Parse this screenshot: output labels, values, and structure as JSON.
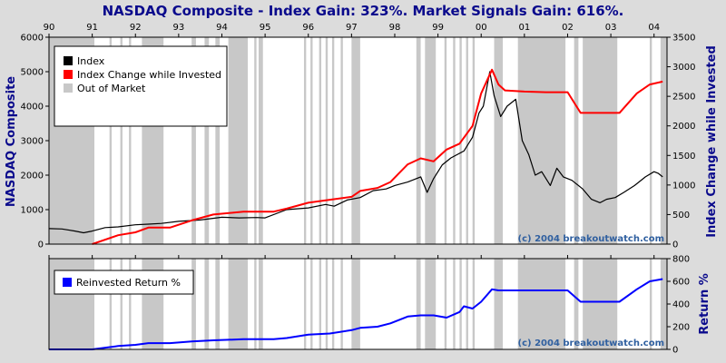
{
  "chart_data": [
    {
      "type": "line",
      "title": "NASDAQ Composite - Index Gain: 323%. Market Signals Gain: 616%.",
      "ylabel": "NASDAQ Composite",
      "y2label": "Index Change while Invested",
      "ylim": [
        0,
        6000
      ],
      "y2lim": [
        0,
        3500
      ],
      "yticks": [
        "0",
        "1000",
        "2000",
        "3000",
        "4000",
        "5000",
        "6000"
      ],
      "y2ticks": [
        "0",
        "500",
        "1000",
        "1500",
        "2000",
        "2500",
        "3000",
        "3500"
      ],
      "xlim": [
        1990.0,
        2004.3
      ],
      "xticks": [
        {
          "x": 1990,
          "label": "90"
        },
        {
          "x": 1991,
          "label": "91"
        },
        {
          "x": 1992,
          "label": "92"
        },
        {
          "x": 1993,
          "label": "93"
        },
        {
          "x": 1994,
          "label": "94"
        },
        {
          "x": 1995,
          "label": "95"
        },
        {
          "x": 1996,
          "label": "96"
        },
        {
          "x": 1997,
          "label": "97"
        },
        {
          "x": 1998,
          "label": "98"
        },
        {
          "x": 1999,
          "label": "99"
        },
        {
          "x": 2000,
          "label": "00"
        },
        {
          "x": 2001,
          "label": "01"
        },
        {
          "x": 2002,
          "label": "02"
        },
        {
          "x": 2003,
          "label": "03"
        },
        {
          "x": 2004,
          "label": "04"
        }
      ],
      "legend": [
        "Index",
        "Index Change while Invested",
        "Out of Market"
      ],
      "legend_position": "top-left",
      "annotation": "(c) 2004 breakoutwatch.com",
      "series": [
        {
          "name": "Index",
          "color": "#000000",
          "axis": "left",
          "x": [
            1990.0,
            1990.3,
            1990.6,
            1990.8,
            1991.0,
            1991.3,
            1991.6,
            1992.0,
            1992.3,
            1992.6,
            1993.0,
            1993.5,
            1994.0,
            1994.4,
            1994.8,
            1995.0,
            1995.5,
            1996.0,
            1996.4,
            1996.6,
            1996.9,
            1997.2,
            1997.5,
            1997.8,
            1998.0,
            1998.3,
            1998.6,
            1998.75,
            1998.9,
            1999.1,
            1999.3,
            1999.6,
            1999.8,
            1999.95,
            2000.05,
            2000.2,
            2000.3,
            2000.45,
            2000.6,
            2000.8,
            2000.95,
            2001.1,
            2001.25,
            2001.4,
            2001.6,
            2001.75,
            2001.9,
            2002.1,
            2002.35,
            2002.55,
            2002.75,
            2002.9,
            2003.1,
            2003.3,
            2003.55,
            2003.8,
            2004.0,
            2004.1,
            2004.2
          ],
          "y": [
            450,
            440,
            380,
            330,
            380,
            480,
            500,
            560,
            580,
            600,
            660,
            700,
            780,
            760,
            770,
            760,
            1000,
            1050,
            1150,
            1100,
            1280,
            1350,
            1550,
            1600,
            1700,
            1800,
            1950,
            1500,
            1900,
            2300,
            2500,
            2700,
            3100,
            3800,
            4000,
            5000,
            4300,
            3700,
            4000,
            4200,
            3000,
            2600,
            2000,
            2100,
            1700,
            2200,
            1950,
            1850,
            1600,
            1300,
            1200,
            1300,
            1350,
            1500,
            1700,
            1950,
            2100,
            2050,
            1950
          ]
        },
        {
          "name": "Index Change while Invested",
          "color": "#ff0000",
          "axis": "right",
          "x": [
            1991.0,
            1991.6,
            1992.0,
            1992.3,
            1992.8,
            1993.3,
            1993.8,
            1994.5,
            1995.2,
            1995.5,
            1996.0,
            1996.5,
            1997.0,
            1997.2,
            1997.6,
            1997.9,
            1998.3,
            1998.6,
            1998.9,
            1999.2,
            1999.5,
            1999.8,
            2000.0,
            2000.25,
            2000.4,
            2000.55,
            2001.0,
            2001.5,
            2002.0,
            2002.3,
            2003.2,
            2003.6,
            2003.9,
            2004.2
          ],
          "y": [
            0,
            150,
            200,
            280,
            280,
            400,
            500,
            550,
            550,
            600,
            700,
            750,
            800,
            900,
            950,
            1050,
            1350,
            1450,
            1400,
            1600,
            1700,
            2000,
            2550,
            2950,
            2700,
            2600,
            2580,
            2570,
            2570,
            2220,
            2220,
            2550,
            2700,
            2750
          ]
        }
      ],
      "out_of_market_periods": [
        [
          1990.0,
          1991.05
        ],
        [
          1991.4,
          1991.45
        ],
        [
          1991.65,
          1991.7
        ],
        [
          1991.85,
          1991.9
        ],
        [
          1992.15,
          1992.65
        ],
        [
          1993.3,
          1993.4
        ],
        [
          1993.6,
          1993.7
        ],
        [
          1993.85,
          1993.95
        ],
        [
          1994.15,
          1994.6
        ],
        [
          1994.75,
          1994.8
        ],
        [
          1994.85,
          1994.95
        ],
        [
          1995.9,
          1995.95
        ],
        [
          1996.05,
          1996.1
        ],
        [
          1996.25,
          1996.3
        ],
        [
          1996.4,
          1996.45
        ],
        [
          1996.55,
          1996.6
        ],
        [
          1996.75,
          1996.8
        ],
        [
          1997.0,
          1997.2
        ],
        [
          1998.5,
          1998.6
        ],
        [
          1998.7,
          1998.95
        ],
        [
          1999.15,
          1999.2
        ],
        [
          1999.35,
          1999.4
        ],
        [
          1999.5,
          1999.55
        ],
        [
          1999.65,
          1999.7
        ],
        [
          1999.8,
          1999.85
        ],
        [
          2000.3,
          2000.5
        ],
        [
          2000.85,
          2001.95
        ],
        [
          2002.15,
          2002.25
        ],
        [
          2002.35,
          2003.15
        ],
        [
          2003.9,
          2003.95
        ],
        [
          2004.15,
          2004.3
        ]
      ]
    },
    {
      "type": "line",
      "ylabel": "Return %",
      "ylim": [
        0,
        800
      ],
      "yticks": [
        "0",
        "200",
        "400",
        "600",
        "800"
      ],
      "legend": [
        "Reinvested Return %"
      ],
      "legend_position": "top-left",
      "annotation": "(c) 2004 breakoutwatch.com",
      "series": [
        {
          "name": "Reinvested Return %",
          "color": "#0000ff",
          "x": [
            1990.0,
            1991.0,
            1991.6,
            1992.0,
            1992.3,
            1992.8,
            1993.3,
            1993.8,
            1994.5,
            1995.2,
            1995.5,
            1996.0,
            1996.5,
            1997.0,
            1997.2,
            1997.6,
            1997.9,
            1998.3,
            1998.6,
            1998.9,
            1999.2,
            1999.5,
            1999.6,
            1999.8,
            2000.0,
            2000.25,
            2000.4,
            2000.55,
            2001.0,
            2001.5,
            2002.0,
            2002.3,
            2003.2,
            2003.6,
            2003.9,
            2004.2
          ],
          "y": [
            0,
            0,
            30,
            40,
            55,
            55,
            70,
            80,
            90,
            90,
            100,
            130,
            140,
            170,
            190,
            200,
            230,
            290,
            300,
            300,
            280,
            330,
            380,
            360,
            420,
            530,
            520,
            520,
            520,
            520,
            520,
            420,
            420,
            530,
            600,
            620
          ]
        }
      ]
    }
  ]
}
